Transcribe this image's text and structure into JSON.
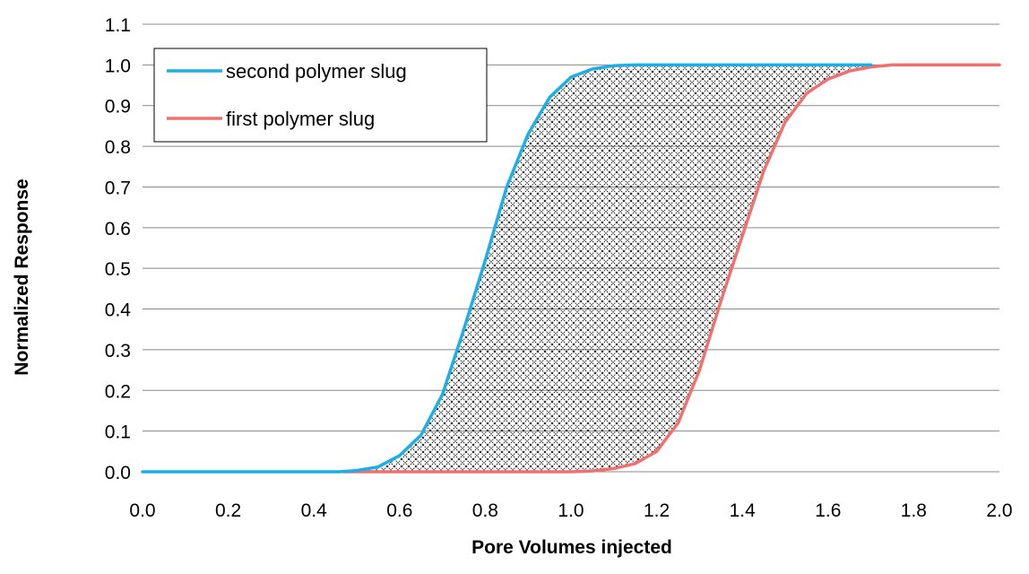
{
  "chart_data": {
    "type": "line",
    "title": "",
    "xlabel": "Pore Volumes injected",
    "ylabel": "Normalized Response",
    "xlim": [
      0,
      2.0
    ],
    "ylim": [
      0,
      1.1
    ],
    "x_ticks": [
      "0.0",
      "0.2",
      "0.4",
      "0.6",
      "0.8",
      "1.0",
      "1.2",
      "1.4",
      "1.6",
      "1.8",
      "2.0"
    ],
    "y_ticks": [
      "0.0",
      "0.1",
      "0.2",
      "0.3",
      "0.4",
      "0.5",
      "0.6",
      "0.7",
      "0.8",
      "0.9",
      "1.0",
      "1.1"
    ],
    "grid": "horizontal",
    "legend_position": "top-left",
    "shaded_region": "crosshatch between series",
    "series": [
      {
        "name": "second polymer slug",
        "color": "#1aafe6",
        "points": [
          [
            0.0,
            0.0
          ],
          [
            0.46,
            0.0
          ],
          [
            0.5,
            0.003
          ],
          [
            0.55,
            0.012
          ],
          [
            0.6,
            0.04
          ],
          [
            0.65,
            0.09
          ],
          [
            0.7,
            0.19
          ],
          [
            0.75,
            0.35
          ],
          [
            0.8,
            0.52
          ],
          [
            0.85,
            0.7
          ],
          [
            0.9,
            0.83
          ],
          [
            0.95,
            0.92
          ],
          [
            1.0,
            0.97
          ],
          [
            1.05,
            0.99
          ],
          [
            1.1,
            0.998
          ],
          [
            1.15,
            1.0
          ],
          [
            1.7,
            1.0
          ]
        ]
      },
      {
        "name": "first polymer slug",
        "color": "#f07070",
        "points": [
          [
            0.47,
            0.0
          ],
          [
            1.0,
            0.0
          ],
          [
            1.05,
            0.002
          ],
          [
            1.1,
            0.008
          ],
          [
            1.15,
            0.02
          ],
          [
            1.2,
            0.05
          ],
          [
            1.25,
            0.12
          ],
          [
            1.3,
            0.25
          ],
          [
            1.35,
            0.42
          ],
          [
            1.4,
            0.58
          ],
          [
            1.45,
            0.74
          ],
          [
            1.5,
            0.86
          ],
          [
            1.55,
            0.93
          ],
          [
            1.6,
            0.965
          ],
          [
            1.65,
            0.985
          ],
          [
            1.7,
            0.995
          ],
          [
            1.75,
            1.0
          ],
          [
            2.0,
            1.0
          ]
        ]
      }
    ]
  }
}
